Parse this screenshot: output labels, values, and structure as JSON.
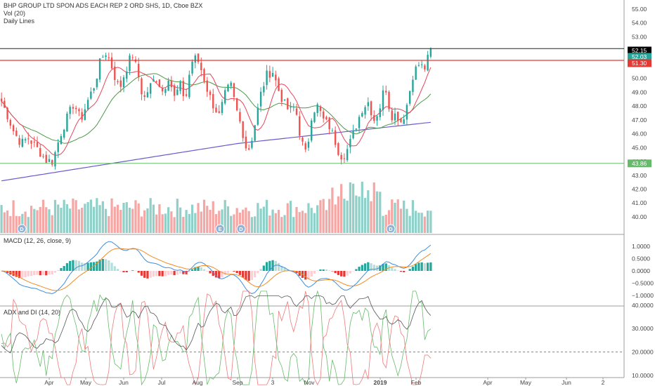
{
  "header": {
    "title": "BHP GROUP LTD SPON ADS EACH REP 2 ORD SHS, 1D, Cboe BZX",
    "volume_label": "Vol (20)",
    "lines_label": "Daily Lines"
  },
  "colors": {
    "up": "#26a69a",
    "down": "#ef5350",
    "vol_up": "#8fd1c9",
    "vol_down": "#f4a7a5",
    "ma_fast": "#e8455a",
    "ma_mid": "#4c9a47",
    "ma_slow": "#6a5acd",
    "macd": "#3d8ee0",
    "signal": "#f08a24",
    "adx": "#555555",
    "di_plus": "#66bb6a",
    "di_minus": "#ef7b7b",
    "resistance": "#e53935",
    "support": "#66bb6a",
    "last_price_bg": "#000000",
    "current_bg": "#26a69a",
    "resistance_bg": "#e53935",
    "support_bg": "#66bb6a"
  },
  "chart_data": [
    {
      "type": "candlestick",
      "title": "BHP GROUP LTD SPON ADS EACH REP 2 ORD SHS, 1D, Cboe BZX",
      "x_tick_labels": [
        "Apr",
        "May",
        "Jun",
        "Jul",
        "Aug",
        "Sep",
        "3",
        "Nov",
        "2019",
        "Feb",
        "Apr",
        "May",
        "Jun",
        "2"
      ],
      "y_ticks": [
        "40.00",
        "41.00",
        "42.00",
        "43.00",
        "44.00",
        "45.00",
        "46.00",
        "47.00",
        "48.00",
        "49.00",
        "50.00",
        "51.00",
        "52.00",
        "53.00",
        "54.00",
        "55.00"
      ],
      "ylim": [
        39.5,
        55.5
      ],
      "price_labels": {
        "last": "52.15",
        "current": "52.03",
        "resistance": "51.30",
        "support": "43.86"
      },
      "levels": {
        "last": 52.15,
        "resistance": 51.3,
        "support": 43.86
      },
      "events": [
        "D",
        "E",
        "D",
        "D"
      ],
      "close_path": [
        [
          0,
          48.6
        ],
        [
          10,
          47.4
        ],
        [
          20,
          46.1
        ],
        [
          30,
          45.3
        ],
        [
          40,
          45.7
        ],
        [
          55,
          44.8
        ],
        [
          65,
          44.1
        ],
        [
          75,
          44.0
        ],
        [
          85,
          45.8
        ],
        [
          95,
          47.1
        ],
        [
          105,
          48.2
        ],
        [
          115,
          47.0
        ],
        [
          125,
          48.4
        ],
        [
          135,
          49.6
        ],
        [
          143,
          51.3
        ],
        [
          150,
          51.9
        ],
        [
          157,
          51.2
        ],
        [
          162,
          50.3
        ],
        [
          170,
          49.2
        ],
        [
          178,
          50.5
        ],
        [
          188,
          51.8
        ],
        [
          196,
          50.4
        ],
        [
          204,
          48.4
        ],
        [
          212,
          49.3
        ],
        [
          222,
          50.1
        ],
        [
          232,
          49.0
        ],
        [
          240,
          50.2
        ],
        [
          248,
          48.6
        ],
        [
          256,
          49.5
        ],
        [
          264,
          48.4
        ],
        [
          272,
          51.2
        ],
        [
          280,
          51.5
        ],
        [
          288,
          50.4
        ],
        [
          296,
          49.0
        ],
        [
          304,
          48.0
        ],
        [
          312,
          47.3
        ],
        [
          320,
          48.8
        ],
        [
          328,
          49.6
        ],
        [
          336,
          47.8
        ],
        [
          344,
          46.4
        ],
        [
          352,
          44.6
        ],
        [
          358,
          45.6
        ],
        [
          364,
          47.0
        ],
        [
          372,
          49.1
        ],
        [
          380,
          50.3
        ],
        [
          388,
          50.5
        ],
        [
          396,
          49.2
        ],
        [
          404,
          48.2
        ],
        [
          412,
          47.6
        ],
        [
          420,
          48.0
        ],
        [
          428,
          45.6
        ],
        [
          436,
          44.4
        ],
        [
          444,
          47.6
        ],
        [
          452,
          48.0
        ],
        [
          460,
          47.0
        ],
        [
          468,
          46.6
        ],
        [
          476,
          45.6
        ],
        [
          484,
          44.4
        ],
        [
          492,
          44.6
        ],
        [
          500,
          45.6
        ],
        [
          508,
          46.8
        ],
        [
          516,
          47.9
        ],
        [
          524,
          48.3
        ],
        [
          532,
          47.0
        ],
        [
          540,
          47.8
        ],
        [
          548,
          49.6
        ],
        [
          556,
          47.3
        ],
        [
          564,
          47.4
        ],
        [
          572,
          46.8
        ],
        [
          580,
          48.3
        ],
        [
          588,
          50.4
        ],
        [
          596,
          51.0
        ],
        [
          604,
          50.7
        ],
        [
          608,
          51.3
        ],
        [
          613,
          52.1
        ]
      ]
    },
    {
      "type": "line",
      "title": "MACD (12, 26, close, 9)",
      "y_ticks": [
        "1.0000",
        "0.5000",
        "0.0000",
        "−0.5000",
        "−1.0000"
      ],
      "ylim": [
        -1.4,
        1.35
      ]
    },
    {
      "type": "line",
      "title": "ADX and DI (14, 20)",
      "y_ticks": [
        "40.0000",
        "30.0000",
        "20.0000",
        "10.0000"
      ],
      "ylim": [
        4,
        48
      ],
      "reference_level": 20
    }
  ]
}
